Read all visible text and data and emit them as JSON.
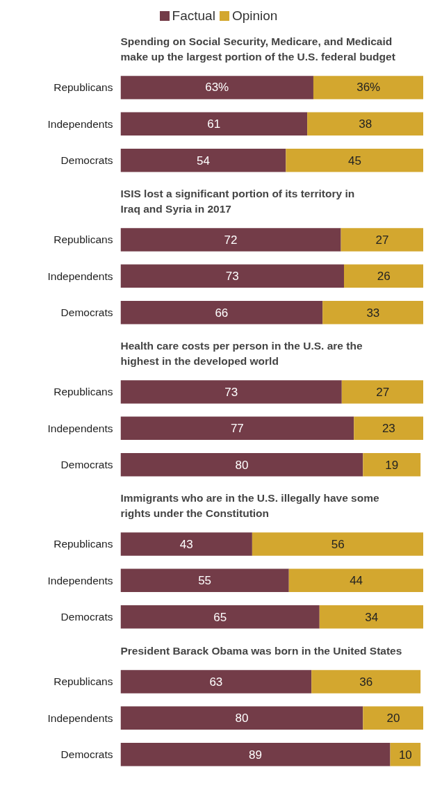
{
  "chart_data": [
    {
      "type": "bar",
      "orientation": "horizontal",
      "stacked": true,
      "legend": "top",
      "tick_labels": "y",
      "grid": false,
      "title": "Spending on Social Security, Medicare, and Medicaid make up the largest portion of the U.S. federal budget",
      "categories": [
        "Republicans",
        "Independents",
        "Democrats"
      ],
      "series": [
        {
          "name": "Factual",
          "color": "#733c48",
          "values": [
            63,
            61,
            54
          ],
          "value_labels": [
            "63%",
            "61",
            "54"
          ]
        },
        {
          "name": "Opinion",
          "color": "#d3a72f",
          "values": [
            36,
            38,
            45
          ],
          "value_labels": [
            "36%",
            "38",
            "45"
          ]
        }
      ]
    },
    {
      "type": "bar",
      "orientation": "horizontal",
      "stacked": true,
      "tick_labels": "y",
      "grid": false,
      "data_labels": true,
      "title": "ISIS lost a significant portion of its territory in Iraq and Syria in 2017",
      "categories": [
        "Republicans",
        "Independents",
        "Democrats"
      ],
      "series": [
        {
          "color": "#733c48",
          "values": [
            72,
            73,
            66
          ]
        },
        {
          "color": "#d3a72f",
          "values": [
            27,
            26,
            33
          ]
        }
      ]
    },
    {
      "type": "bar",
      "orientation": "horizontal",
      "stacked": true,
      "tick_labels": "y",
      "grid": false,
      "data_labels": true,
      "title": "Health care costs per person in the U.S. are the highest in the developed world",
      "categories": [
        "Republicans",
        "Independents",
        "Democrats"
      ],
      "series": [
        {
          "color": "#733c48",
          "values": [
            73,
            77,
            80
          ]
        },
        {
          "color": "#d3a72f",
          "values": [
            27,
            23,
            19
          ]
        }
      ]
    },
    {
      "type": "bar",
      "orientation": "horizontal",
      "stacked": true,
      "tick_labels": "y",
      "grid": false,
      "data_labels": true,
      "title": "Immigrants who are in the U.S. illegally have some rights under the Constitution",
      "categories": [
        "Republicans",
        "Independents",
        "Democrats"
      ],
      "series": [
        {
          "color": "#733c48",
          "values": [
            43,
            55,
            65
          ]
        },
        {
          "color": "#d3a72f",
          "values": [
            56,
            44,
            34
          ]
        }
      ]
    },
    {
      "type": "bar",
      "orientation": "horizontal",
      "stacked": true,
      "tick_labels": "y",
      "grid": false,
      "data_labels": true,
      "title": "President Barack Obama was born in the United States",
      "categories": [
        "Republicans",
        "Independents",
        "Democrats"
      ],
      "series": [
        {
          "color": "#733c48",
          "values": [
            63,
            80,
            89
          ]
        },
        {
          "color": "#d3a72f",
          "values": [
            36,
            20,
            10
          ]
        }
      ]
    }
  ]
}
